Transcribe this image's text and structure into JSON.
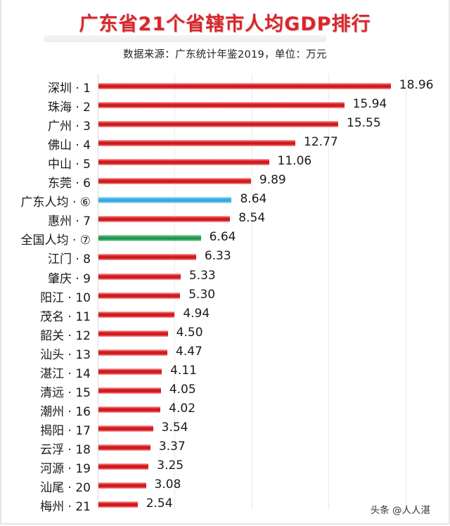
{
  "header": {
    "title": "广东省21个省辖市人均GDP排行",
    "subtitle": "数据来源：广东统计年鉴2019，单位：万元"
  },
  "watermark": "头条 @人人湛",
  "colors": {
    "city_bar": "#d9262b",
    "guangdong_avg_bar": "#3aa9df",
    "national_avg_bar": "#23955a",
    "title": "#d9262b"
  },
  "chart_data": {
    "type": "bar",
    "orientation": "horizontal",
    "title": "广东省21个省辖市人均GDP排行",
    "subtitle": "数据来源：广东统计年鉴2019，单位：万元",
    "xlabel": "",
    "ylabel": "",
    "unit": "万元",
    "xlim": [
      0,
      20
    ],
    "grid": {
      "vertical": true,
      "ticks": [
        0,
        5,
        10,
        15,
        20
      ],
      "tick_labels_shown": false
    },
    "legend": null,
    "categories": [
      "深圳 · 1",
      "珠海 · 2",
      "广州 · 3",
      "佛山 · 4",
      "中山 · 5",
      "东莞 · 6",
      "广东人均 · ⑥",
      "惠州 · 7",
      "全国人均 · ⑦",
      "江门 · 8",
      "肇庆 · 9",
      "阳江 · 10",
      "茂名 · 11",
      "韶关 · 12",
      "汕头 · 13",
      "湛江 · 14",
      "清远 · 15",
      "潮州 · 16",
      "揭阳 · 17",
      "云浮 · 18",
      "河源 · 19",
      "汕尾 · 20",
      "梅州 · 21"
    ],
    "values": [
      18.96,
      15.94,
      15.55,
      12.77,
      11.06,
      9.89,
      8.64,
      8.54,
      6.64,
      6.33,
      5.33,
      5.3,
      4.94,
      4.5,
      4.47,
      4.11,
      4.05,
      4.02,
      3.54,
      3.37,
      3.25,
      3.08,
      2.54
    ],
    "value_labels": [
      "18.96",
      "15.94",
      "15.55",
      "12.77",
      "11.06",
      "9.89",
      "8.64",
      "8.54",
      "6.64",
      "6.33",
      "5.33",
      "5.30",
      "4.94",
      "4.50",
      "4.47",
      "4.11",
      "4.05",
      "4.02",
      "3.54",
      "3.37",
      "3.25",
      "3.08",
      "2.54"
    ],
    "bar_kinds": [
      "city",
      "city",
      "city",
      "city",
      "city",
      "city",
      "guangdong_avg",
      "city",
      "national_avg",
      "city",
      "city",
      "city",
      "city",
      "city",
      "city",
      "city",
      "city",
      "city",
      "city",
      "city",
      "city",
      "city",
      "city"
    ],
    "annotations": [
      "广东人均 8.64 (blue)",
      "全国人均 6.64 (green)"
    ]
  }
}
